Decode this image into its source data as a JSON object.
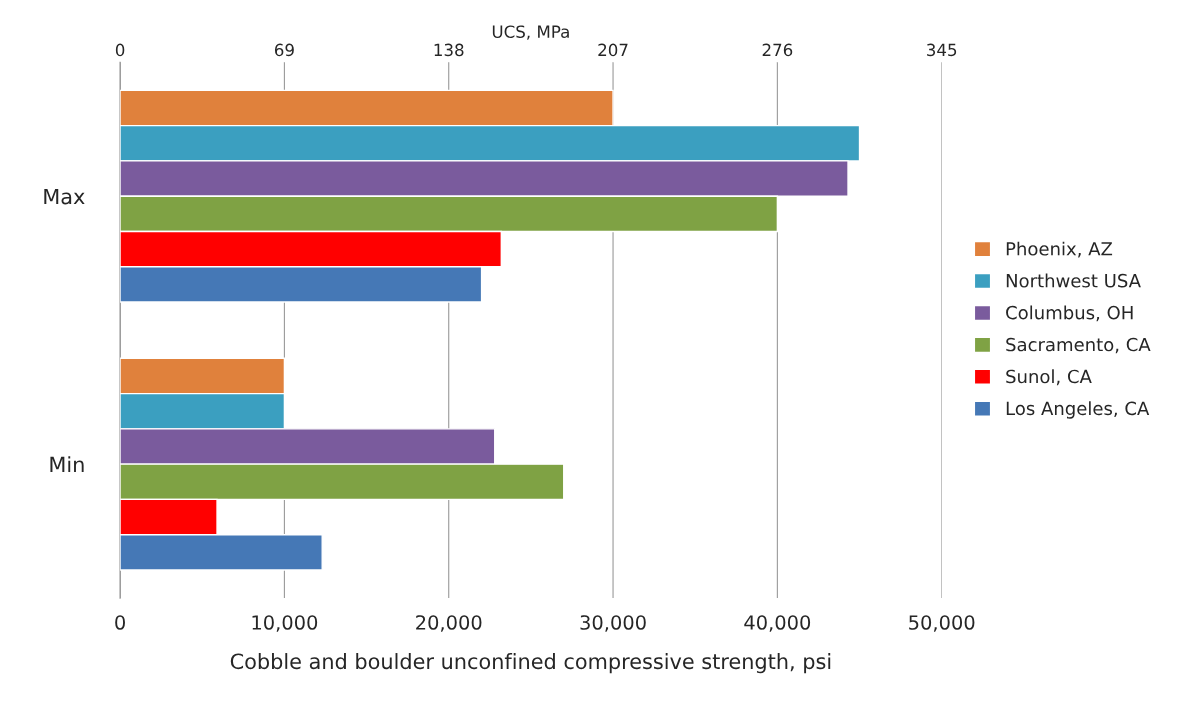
{
  "chart_data": {
    "type": "bar",
    "orientation": "horizontal",
    "xlabel": "Cobble and boulder unconfined compressive strength, psi",
    "x2label": "UCS, MPa",
    "categories": [
      "Max",
      "Min"
    ],
    "series": [
      {
        "name": "Phoenix, AZ",
        "color": "#e0813c",
        "values": [
          30000,
          10000
        ]
      },
      {
        "name": "Northwest USA",
        "color": "#3b9fc0",
        "values": [
          45000,
          10000
        ]
      },
      {
        "name": "Columbus, OH",
        "color": "#7a5b9d",
        "values": [
          44300,
          22800
        ]
      },
      {
        "name": "Sacramento, CA",
        "color": "#7fa244",
        "values": [
          40000,
          27000
        ]
      },
      {
        "name": "Sunol, CA",
        "color": "#ff0000",
        "values": [
          23200,
          5900
        ]
      },
      {
        "name": "Los Angeles, CA",
        "color": "#4578b6",
        "values": [
          22000,
          12300
        ]
      }
    ],
    "xlim": [
      0,
      50000
    ],
    "xticks": [
      0,
      {
        "value": 10000,
        "label": "10,000"
      },
      {
        "value": 20000,
        "label": "20,000"
      },
      {
        "value": 30000,
        "label": "30,000"
      },
      {
        "value": 40000,
        "label": "40,000"
      },
      {
        "value": 50000,
        "label": "50,000"
      }
    ],
    "x2lim": [
      0,
      345
    ],
    "x2ticks": [
      0,
      69,
      138,
      207,
      276,
      345
    ],
    "grid": "x",
    "legend": "right"
  }
}
